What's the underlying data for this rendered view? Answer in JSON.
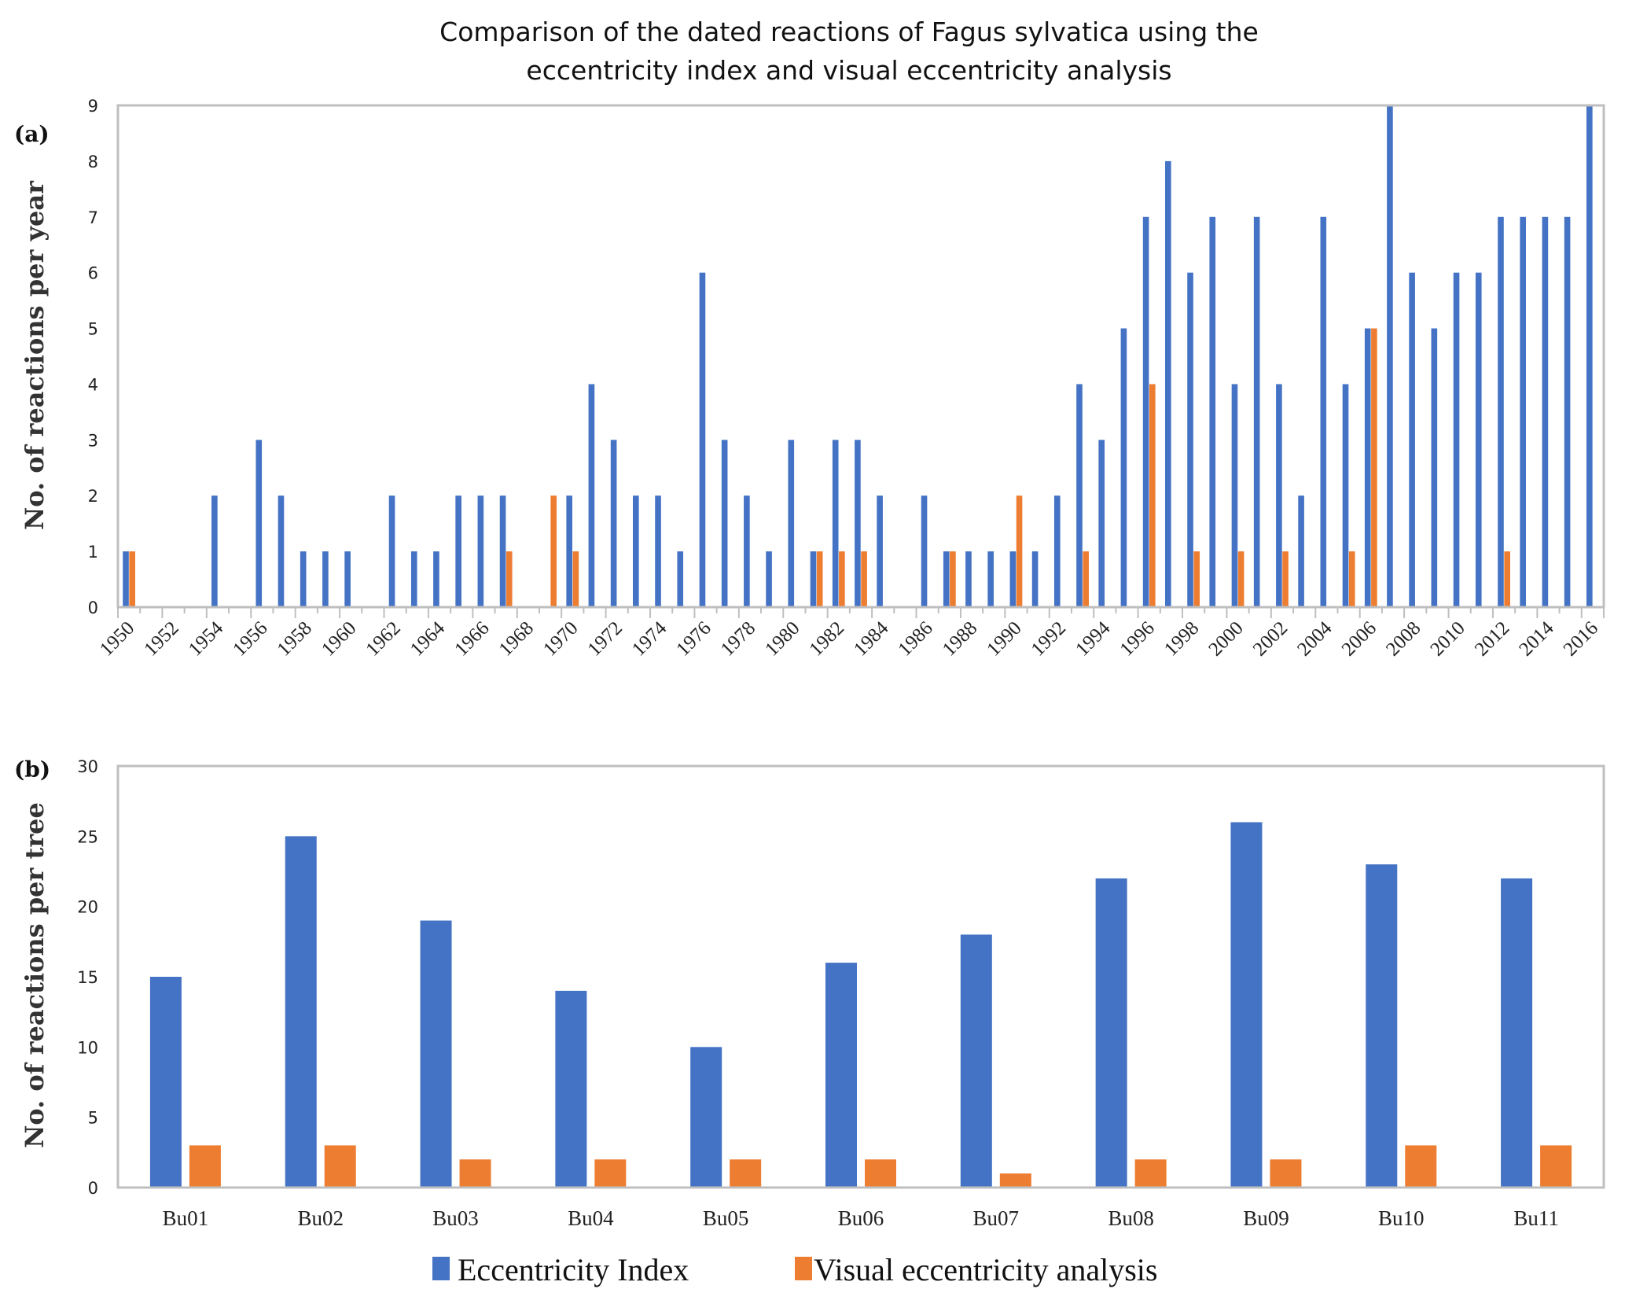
{
  "chart_data": [
    {
      "id": "a",
      "type": "bar",
      "panel_label": "(a)",
      "title": "Comparison of the dated reactions of Fagus sylvatica using the eccentricity index and visual eccentricity analysis",
      "title_lines": [
        "Comparison of the dated reactions of Fagus sylvatica using the",
        "eccentricity index and visual eccentricity analysis"
      ],
      "xlabel": "",
      "ylabel": "No. of reactions per year",
      "ylim": [
        0,
        9
      ],
      "yticks": [
        0,
        1,
        2,
        3,
        4,
        5,
        6,
        7,
        8,
        9
      ],
      "grid": false,
      "x_tick_label_every": 2,
      "categories": [
        "1950",
        "1951",
        "1952",
        "1953",
        "1954",
        "1955",
        "1956",
        "1957",
        "1958",
        "1959",
        "1960",
        "1961",
        "1962",
        "1963",
        "1964",
        "1965",
        "1966",
        "1967",
        "1968",
        "1969",
        "1970",
        "1971",
        "1972",
        "1973",
        "1974",
        "1975",
        "1976",
        "1977",
        "1978",
        "1979",
        "1980",
        "1981",
        "1982",
        "1983",
        "1984",
        "1985",
        "1986",
        "1987",
        "1988",
        "1989",
        "1990",
        "1991",
        "1992",
        "1993",
        "1994",
        "1995",
        "1996",
        "1997",
        "1998",
        "1999",
        "2000",
        "2001",
        "2002",
        "2003",
        "2004",
        "2005",
        "2006",
        "2007",
        "2008",
        "2009",
        "2010",
        "2011",
        "2012",
        "2013",
        "2014",
        "2015",
        "2016"
      ],
      "series": [
        {
          "name": "Eccentricity Index",
          "color": "#4472C4",
          "values": [
            1,
            0,
            0,
            0,
            2,
            0,
            3,
            2,
            1,
            1,
            1,
            0,
            2,
            1,
            1,
            2,
            2,
            2,
            0,
            0,
            2,
            4,
            3,
            2,
            2,
            1,
            6,
            3,
            2,
            1,
            3,
            1,
            3,
            3,
            2,
            0,
            2,
            1,
            1,
            1,
            1,
            1,
            2,
            4,
            3,
            5,
            7,
            8,
            6,
            7,
            4,
            7,
            4,
            2,
            7,
            4,
            5,
            9,
            6,
            5,
            6,
            6,
            7,
            7,
            7,
            7,
            9
          ]
        },
        {
          "name": "Visual eccentricity analysis",
          "color": "#ED7D31",
          "values": [
            1,
            0,
            0,
            0,
            0,
            0,
            0,
            0,
            0,
            0,
            0,
            0,
            0,
            0,
            0,
            0,
            0,
            1,
            0,
            2,
            1,
            0,
            0,
            0,
            0,
            0,
            0,
            0,
            0,
            0,
            0,
            1,
            1,
            1,
            0,
            0,
            0,
            1,
            0,
            0,
            2,
            0,
            0,
            1,
            0,
            0,
            4,
            0,
            1,
            0,
            1,
            0,
            1,
            0,
            0,
            1,
            5,
            0,
            0,
            0,
            0,
            0,
            1,
            0,
            0,
            0,
            0
          ]
        }
      ]
    },
    {
      "id": "b",
      "type": "bar",
      "panel_label": "(b)",
      "title": "",
      "xlabel": "",
      "ylabel": "No. of reactions per tree",
      "ylim": [
        0,
        30
      ],
      "yticks": [
        0,
        5,
        10,
        15,
        20,
        25,
        30
      ],
      "grid": false,
      "categories": [
        "Bu01",
        "Bu02",
        "Bu03",
        "Bu04",
        "Bu05",
        "Bu06",
        "Bu07",
        "Bu08",
        "Bu09",
        "Bu10",
        "Bu11"
      ],
      "series": [
        {
          "name": "Eccentricity Index",
          "color": "#4472C4",
          "values": [
            15,
            25,
            19,
            14,
            10,
            16,
            18,
            22,
            26,
            23,
            22
          ]
        },
        {
          "name": "Visual eccentricity analysis",
          "color": "#ED7D31",
          "values": [
            3,
            3,
            2,
            2,
            2,
            2,
            1,
            2,
            2,
            3,
            3
          ]
        }
      ]
    }
  ],
  "legend": {
    "placement": "bottom-center",
    "items": [
      {
        "label": "Eccentricity Index",
        "color": "#4472C4"
      },
      {
        "label": "Visual eccentricity analysis",
        "color": "#ED7D31"
      }
    ]
  }
}
